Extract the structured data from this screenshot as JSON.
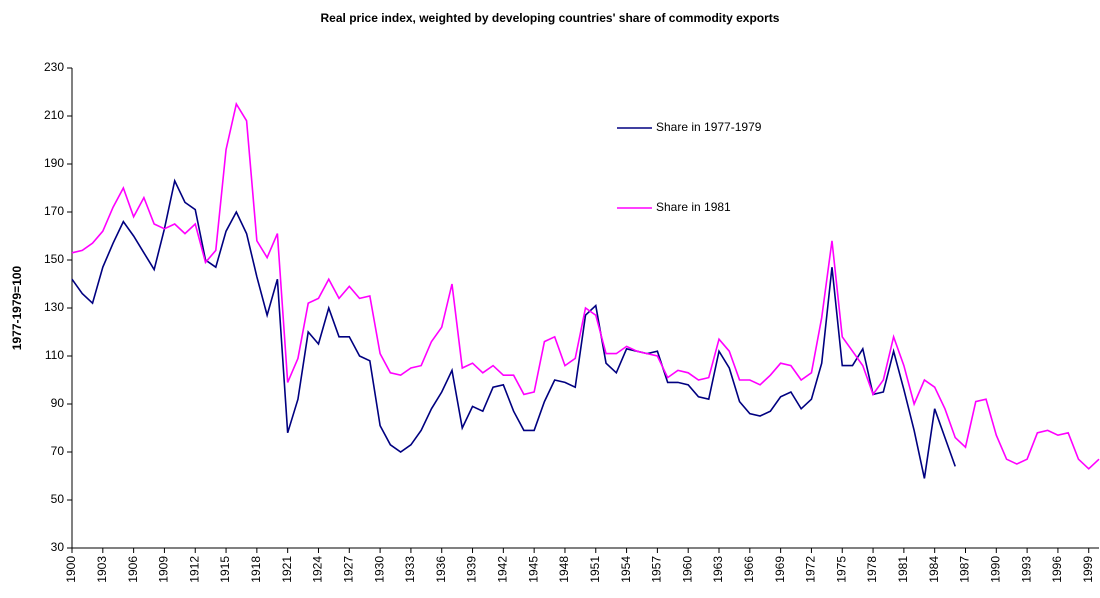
{
  "chart_data": {
    "type": "line",
    "title": "Real price index, weighted by developing countries' share of commodity exports",
    "y_label": "1977-1979=100",
    "x": [
      1900,
      1901,
      1902,
      1903,
      1904,
      1905,
      1906,
      1907,
      1908,
      1909,
      1910,
      1911,
      1912,
      1913,
      1914,
      1915,
      1916,
      1917,
      1918,
      1919,
      1920,
      1921,
      1922,
      1923,
      1924,
      1925,
      1926,
      1927,
      1928,
      1929,
      1930,
      1931,
      1932,
      1933,
      1934,
      1935,
      1936,
      1937,
      1938,
      1939,
      1940,
      1941,
      1942,
      1943,
      1944,
      1945,
      1946,
      1947,
      1948,
      1949,
      1950,
      1951,
      1952,
      1953,
      1954,
      1955,
      1956,
      1957,
      1958,
      1959,
      1960,
      1961,
      1962,
      1963,
      1964,
      1965,
      1966,
      1967,
      1968,
      1969,
      1970,
      1971,
      1972,
      1973,
      1974,
      1975,
      1976,
      1977,
      1978,
      1979,
      1980,
      1981,
      1982,
      1983,
      1984,
      1985,
      1986,
      1987,
      1988,
      1989,
      1990,
      1991,
      1992,
      1993,
      1994,
      1995,
      1996,
      1997,
      1998,
      1999,
      2000
    ],
    "series": [
      {
        "name": "Share in 1977-1979",
        "color": "#000080",
        "values": [
          142,
          136,
          132,
          147,
          157,
          166,
          160,
          153,
          146,
          163,
          183,
          174,
          171,
          150,
          147,
          162,
          170,
          161,
          143,
          127,
          142,
          78,
          92,
          120,
          115,
          130,
          118,
          118,
          110,
          108,
          81,
          73,
          70,
          73,
          79,
          88,
          95,
          104,
          80,
          89,
          87,
          97,
          98,
          87,
          79,
          79,
          91,
          100,
          99,
          97,
          127,
          131,
          107,
          103,
          113,
          112,
          111,
          112,
          99,
          99,
          98,
          93,
          92,
          112,
          105,
          91,
          86,
          85,
          87,
          93,
          95,
          88,
          92,
          107,
          147,
          106,
          106,
          113,
          94,
          95,
          112,
          96,
          79,
          59,
          88,
          76,
          64,
          null,
          null,
          null,
          null,
          null,
          null,
          null,
          null,
          null,
          null,
          null,
          null,
          null,
          null
        ]
      },
      {
        "name": "Share in 1981",
        "color": "#ff00ff",
        "values": [
          153,
          154,
          157,
          162,
          172,
          180,
          168,
          176,
          165,
          163,
          165,
          161,
          165,
          149,
          154,
          196,
          215,
          208,
          158,
          151,
          161,
          99,
          109,
          132,
          134,
          142,
          134,
          139,
          134,
          135,
          111,
          103,
          102,
          105,
          106,
          116,
          122,
          140,
          105,
          107,
          103,
          106,
          102,
          102,
          94,
          95,
          116,
          118,
          106,
          109,
          130,
          127,
          111,
          111,
          114,
          112,
          111,
          110,
          101,
          104,
          103,
          100,
          101,
          117,
          112,
          100,
          100,
          98,
          102,
          107,
          106,
          100,
          103,
          126,
          158,
          118,
          112,
          106,
          94,
          100,
          118,
          106,
          90,
          100,
          97,
          88,
          76,
          72,
          91,
          92,
          77,
          67,
          65,
          67,
          78,
          79,
          77,
          78,
          67,
          63,
          67
        ]
      }
    ],
    "xlim": [
      1900,
      2000
    ],
    "xticks": [
      1900,
      1903,
      1906,
      1909,
      1912,
      1915,
      1918,
      1921,
      1924,
      1927,
      1930,
      1933,
      1936,
      1939,
      1942,
      1945,
      1948,
      1951,
      1954,
      1957,
      1960,
      1963,
      1966,
      1969,
      1972,
      1975,
      1978,
      1981,
      1984,
      1987,
      1990,
      1993,
      1996,
      1999
    ],
    "ylim": [
      30,
      230
    ],
    "yticks": [
      30,
      50,
      70,
      90,
      110,
      130,
      150,
      170,
      190,
      210,
      230
    ],
    "grid": false
  }
}
